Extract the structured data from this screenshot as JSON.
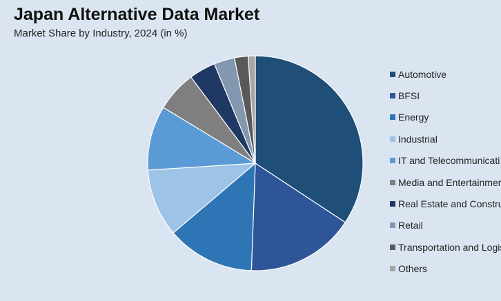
{
  "header": {
    "title": "Japan Alternative Data Market",
    "subtitle": "Market Share by Industry, 2024 (in %)"
  },
  "chart_data": {
    "type": "pie",
    "title": "Japan Alternative Data Market",
    "subtitle": "Market Share by Industry, 2024 (in %)",
    "categories": [
      "Automotive",
      "BFSI",
      "Energy",
      "Industrial",
      "IT and Telecommunications",
      "Media and Entertainment",
      "Real Estate and Construction",
      "Retail",
      "Transportation and Logistics",
      "Others"
    ],
    "values": [
      35.3,
      16.8,
      13.6,
      10.5,
      10.0,
      6.3,
      4.1,
      3.2,
      2.1,
      1.1
    ],
    "colors": [
      "#1f4e79",
      "#2e5597",
      "#2e75b6",
      "#9dc3e6",
      "#5b9bd5",
      "#7f7f7f",
      "#203864",
      "#8497b0",
      "#595959",
      "#a6a6a6"
    ],
    "legend_position": "right",
    "legend": [
      {
        "label": "Automotive",
        "display": "Automotive"
      },
      {
        "label": "BFSI",
        "display": "BFSI"
      },
      {
        "label": "Energy",
        "display": "Energy"
      },
      {
        "label": "Industrial",
        "display": "Industrial"
      },
      {
        "label": "IT and Telecommunications",
        "display": "IT and Telecommunicati"
      },
      {
        "label": "Media and Entertainment",
        "display": "Media and Entertainmer"
      },
      {
        "label": "Real Estate and Construction",
        "display": "Real Estate and Constru"
      },
      {
        "label": "Retail",
        "display": "Retail"
      },
      {
        "label": "Transportation and Logistics",
        "display": "Transportation and Logis"
      },
      {
        "label": "Others",
        "display": "Others"
      }
    ]
  }
}
